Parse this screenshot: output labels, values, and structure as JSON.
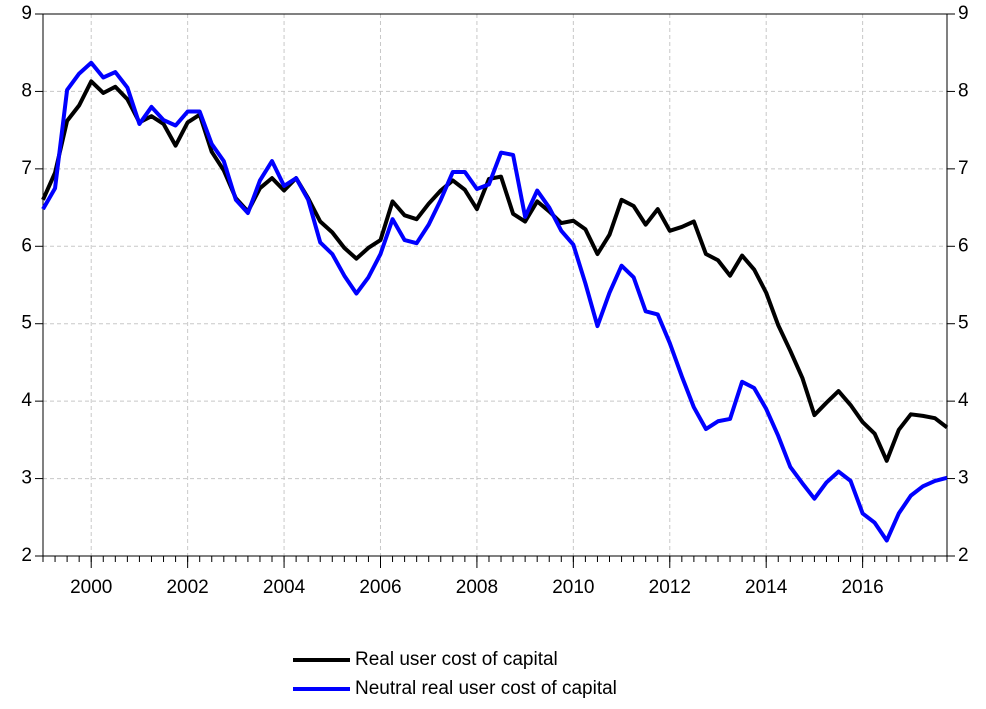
{
  "chart_data": {
    "type": "line",
    "x": [
      1999,
      1999.25,
      1999.5,
      1999.75,
      2000,
      2000.25,
      2000.5,
      2000.75,
      2001,
      2001.25,
      2001.5,
      2001.75,
      2002,
      2002.25,
      2002.5,
      2002.75,
      2003,
      2003.25,
      2003.5,
      2003.75,
      2004,
      2004.25,
      2004.5,
      2004.75,
      2005,
      2005.25,
      2005.5,
      2005.75,
      2006,
      2006.25,
      2006.5,
      2006.75,
      2007,
      2007.25,
      2007.5,
      2007.75,
      2008,
      2008.25,
      2008.5,
      2008.75,
      2009,
      2009.25,
      2009.5,
      2009.75,
      2010,
      2010.25,
      2010.5,
      2010.75,
      2011,
      2011.25,
      2011.5,
      2011.75,
      2012,
      2012.25,
      2012.5,
      2012.75,
      2013,
      2013.25,
      2013.5,
      2013.75,
      2014,
      2014.25,
      2014.5,
      2014.75,
      2015,
      2015.25,
      2015.5,
      2015.75,
      2016,
      2016.25,
      2016.5,
      2016.75,
      2017,
      2017.25,
      2017.5,
      2017.75
    ],
    "series": [
      {
        "name": "Real user cost of capital",
        "color": "#000000",
        "values": [
          6.6,
          6.95,
          7.62,
          7.82,
          8.13,
          7.98,
          8.06,
          7.9,
          7.6,
          7.68,
          7.58,
          7.3,
          7.6,
          7.7,
          7.22,
          6.98,
          6.62,
          6.45,
          6.75,
          6.88,
          6.72,
          6.88,
          6.62,
          6.32,
          6.18,
          5.98,
          5.84,
          5.98,
          6.08,
          6.58,
          6.4,
          6.35,
          6.55,
          6.72,
          6.85,
          6.73,
          6.48,
          6.87,
          6.9,
          6.42,
          6.32,
          6.58,
          6.45,
          6.3,
          6.33,
          6.22,
          5.9,
          6.15,
          6.6,
          6.52,
          6.28,
          6.48,
          6.2,
          6.25,
          6.32,
          5.9,
          5.82,
          5.62,
          5.88,
          5.7,
          5.4,
          4.98,
          4.65,
          4.3,
          3.82,
          3.98,
          4.13,
          3.95,
          3.73,
          3.58,
          3.23,
          3.63,
          3.83,
          3.81,
          3.78,
          3.66
        ]
      },
      {
        "name": "Neutral real user cost of capital",
        "color": "#0000ff",
        "values": [
          6.48,
          6.75,
          8.02,
          8.23,
          8.37,
          8.18,
          8.25,
          8.05,
          7.58,
          7.8,
          7.63,
          7.56,
          7.74,
          7.74,
          7.32,
          7.1,
          6.6,
          6.43,
          6.85,
          7.1,
          6.78,
          6.88,
          6.6,
          6.05,
          5.9,
          5.62,
          5.39,
          5.6,
          5.9,
          6.35,
          6.08,
          6.04,
          6.28,
          6.6,
          6.96,
          6.96,
          6.74,
          6.8,
          7.21,
          7.18,
          6.38,
          6.72,
          6.5,
          6.2,
          6.02,
          5.52,
          4.97,
          5.4,
          5.75,
          5.6,
          5.16,
          5.12,
          4.75,
          4.32,
          3.92,
          3.64,
          3.74,
          3.77,
          4.25,
          4.17,
          3.9,
          3.55,
          3.15,
          2.94,
          2.74,
          2.95,
          3.09,
          2.97,
          2.55,
          2.43,
          2.2,
          2.55,
          2.78,
          2.9,
          2.97,
          3.01
        ]
      }
    ],
    "xlim": [
      1999,
      2017.75
    ],
    "xticks": [
      2000,
      2002,
      2004,
      2006,
      2008,
      2010,
      2012,
      2014,
      2016
    ],
    "ylim": [
      2,
      9
    ],
    "yticks": [
      2,
      3,
      4,
      5,
      6,
      7,
      8,
      9
    ],
    "y2lim": [
      2,
      9
    ],
    "y2ticks": [
      2,
      3,
      4,
      5,
      6,
      7,
      8,
      9
    ],
    "grid": true,
    "legend": "bottom"
  }
}
